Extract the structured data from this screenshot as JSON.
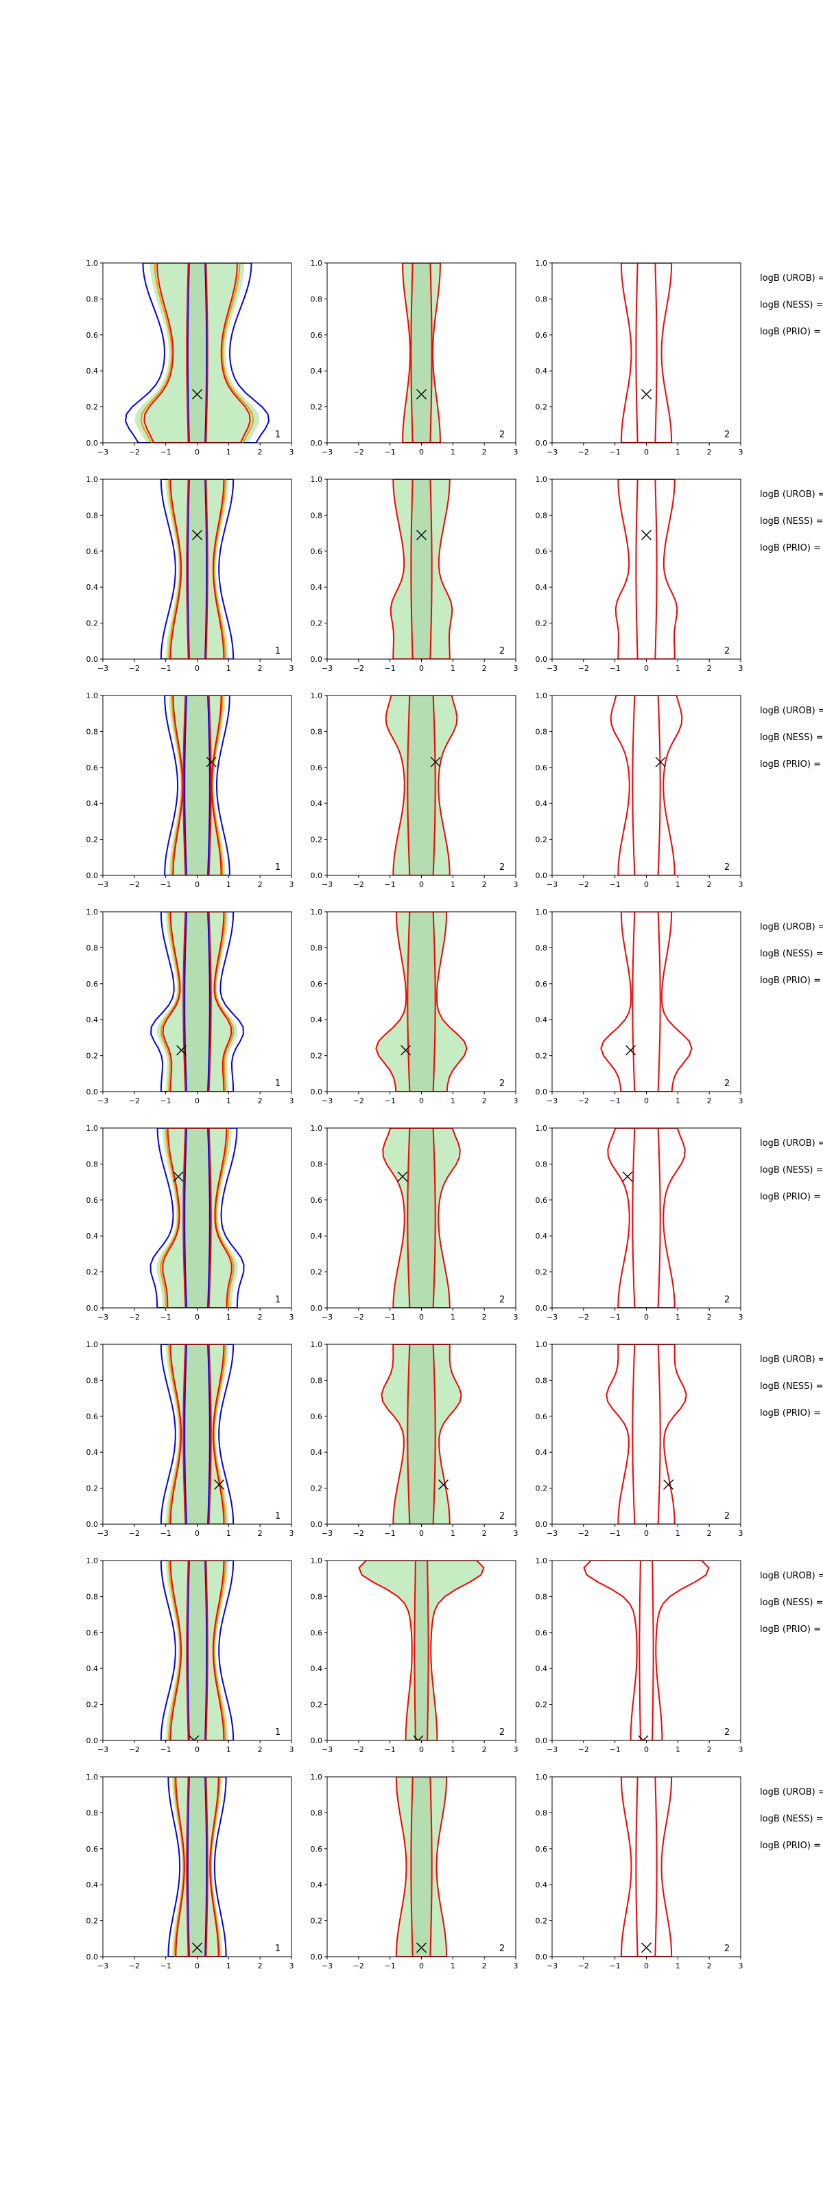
{
  "chart_data": {
    "type": "contour",
    "grid": {
      "rows": 8,
      "cols": 3
    },
    "xlim": [
      -3,
      3
    ],
    "ylim": [
      0,
      1
    ],
    "xticks": [
      "−3",
      "−2",
      "−1",
      "0",
      "1",
      "2",
      "3"
    ],
    "yticks": [
      "0.0",
      "0.2",
      "0.4",
      "0.6",
      "0.8",
      "1.0"
    ],
    "colors": {
      "blue": "#0000ff",
      "red": "#ff0000",
      "orange": "#e8a000",
      "fill": "#c5ecc2",
      "marker": "#000000"
    },
    "panel_labels": [
      "1",
      "2",
      "2"
    ],
    "logB_labels": [
      "logB (UROB) =",
      "logB (NESS) =",
      "logB (PRIO) ="
    ],
    "rows": [
      {
        "marker": [
          0.0,
          0.27
        ],
        "contours": [
          {
            "x_mean": 0.0,
            "outer_half_width": 1.5,
            "inner_half_width": 0.3,
            "bulge_y": 0.15,
            "bulge_extra": 0.6
          },
          {
            "x_mean": 0.0,
            "outer_half_width": 0.6,
            "inner_half_width": 0.3
          },
          {
            "x_mean": 0.0,
            "outer_half_width": 0.8,
            "inner_half_width": 0.3
          }
        ]
      },
      {
        "marker": [
          0.0,
          0.69
        ],
        "contours": [
          {
            "x_mean": 0.0,
            "outer_half_width": 1.0,
            "inner_half_width": 0.3
          },
          {
            "x_mean": 0.0,
            "outer_half_width": 0.9,
            "inner_half_width": 0.3,
            "bulge_y": 0.3,
            "bulge_extra": 0.3
          },
          {
            "x_mean": 0.0,
            "outer_half_width": 0.9,
            "inner_half_width": 0.3,
            "bulge_y": 0.3,
            "bulge_extra": 0.3
          }
        ]
      },
      {
        "marker": [
          0.45,
          0.63
        ],
        "contours": [
          {
            "x_mean": 0.0,
            "outer_half_width": 0.9,
            "inner_half_width": 0.4
          },
          {
            "x_mean": 0.0,
            "outer_half_width": 0.9,
            "inner_half_width": 0.4,
            "bulge_y": 0.85,
            "bulge_extra": 0.3
          },
          {
            "x_mean": 0.0,
            "outer_half_width": 0.9,
            "inner_half_width": 0.4,
            "bulge_y": 0.85,
            "bulge_extra": 0.3
          }
        ]
      },
      {
        "marker": [
          -0.5,
          0.23
        ],
        "contours": [
          {
            "x_mean": 0.0,
            "outer_half_width": 1.0,
            "inner_half_width": 0.4,
            "bulge_y": 0.35,
            "bulge_extra": 0.6
          },
          {
            "x_mean": 0.0,
            "outer_half_width": 0.8,
            "inner_half_width": 0.4,
            "bulge_y": 0.25,
            "bulge_extra": 0.8
          },
          {
            "x_mean": 0.0,
            "outer_half_width": 0.8,
            "inner_half_width": 0.4,
            "bulge_y": 0.25,
            "bulge_extra": 0.8
          }
        ]
      },
      {
        "marker": [
          -0.6,
          0.73
        ],
        "contours": [
          {
            "x_mean": 0.0,
            "outer_half_width": 1.1,
            "inner_half_width": 0.4,
            "bulge_y": 0.25,
            "bulge_extra": 0.4
          },
          {
            "x_mean": 0.0,
            "outer_half_width": 0.9,
            "inner_half_width": 0.4,
            "bulge_y": 0.85,
            "bulge_extra": 0.4
          },
          {
            "x_mean": 0.0,
            "outer_half_width": 0.9,
            "inner_half_width": 0.4,
            "bulge_y": 0.85,
            "bulge_extra": 0.4
          }
        ]
      },
      {
        "marker": [
          0.7,
          0.22
        ],
        "contours": [
          {
            "x_mean": 0.0,
            "outer_half_width": 1.0,
            "inner_half_width": 0.4
          },
          {
            "x_mean": 0.0,
            "outer_half_width": 0.9,
            "inner_half_width": 0.4,
            "bulge_y": 0.7,
            "bulge_extra": 0.6
          },
          {
            "x_mean": 0.0,
            "outer_half_width": 0.9,
            "inner_half_width": 0.4,
            "bulge_y": 0.7,
            "bulge_extra": 0.6
          }
        ]
      },
      {
        "marker": [
          -0.1,
          0.0
        ],
        "contours": [
          {
            "x_mean": 0.0,
            "outer_half_width": 1.0,
            "inner_half_width": 0.3
          },
          {
            "x_mean": 0.0,
            "outer_half_width": 0.5,
            "inner_half_width": 0.2,
            "bulge_y": 0.95,
            "bulge_extra": 1.5
          },
          {
            "x_mean": 0.0,
            "outer_half_width": 0.5,
            "inner_half_width": 0.2,
            "bulge_y": 0.95,
            "bulge_extra": 1.5
          }
        ]
      },
      {
        "marker": [
          0.0,
          0.05
        ],
        "contours": [
          {
            "x_mean": 0.0,
            "outer_half_width": 0.8,
            "inner_half_width": 0.3
          },
          {
            "x_mean": 0.0,
            "outer_half_width": 0.8,
            "inner_half_width": 0.3
          },
          {
            "x_mean": 0.0,
            "outer_half_width": 0.8,
            "inner_half_width": 0.3
          }
        ]
      }
    ]
  }
}
